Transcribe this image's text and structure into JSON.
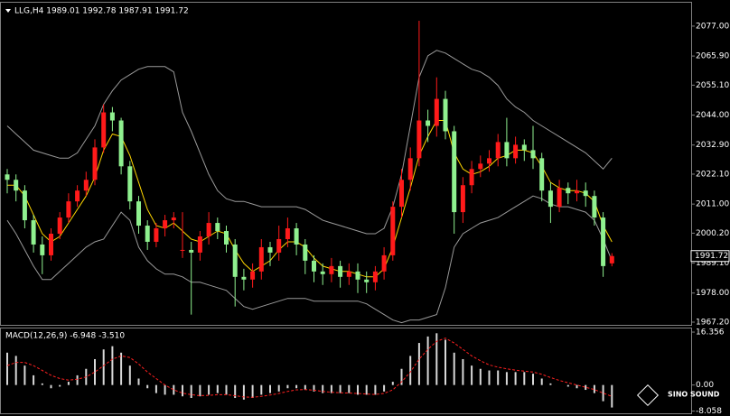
{
  "chart_data": [
    {
      "type": "candlestick",
      "title": "LLG,H4  1989.01 1992.78 1987.91 1991.72",
      "up_color": "#ff1a1a",
      "down_color": "#8ff08f",
      "open": [
        2022,
        2020,
        2016,
        2005,
        1996,
        1992,
        2000,
        2006,
        2012,
        2016,
        2020,
        2032,
        2045,
        2042,
        2025,
        2012,
        2003,
        1997,
        2002,
        2005,
        1994,
        1994,
        1993,
        1999,
        2004,
        2001,
        1996,
        1984,
        1983,
        1986,
        1995,
        1993,
        1998,
        2002,
        1996,
        1990,
        1986,
        1985,
        1988,
        1984,
        1986,
        1983,
        1982,
        1986,
        1992,
        2010,
        2020,
        2028,
        2042,
        2040,
        2050,
        2038,
        2008,
        2018,
        2024,
        2026,
        2028,
        2034,
        2028,
        2033,
        2031,
        2028,
        2016,
        2010,
        2017,
        2015,
        2016,
        2014,
        2006,
        1989.01
      ],
      "high": [
        2024,
        2022,
        2018,
        2007,
        1999,
        2002,
        2008,
        2015,
        2018,
        2023,
        2035,
        2048,
        2047,
        2043,
        2027,
        2014,
        2005,
        2004,
        2007,
        2008,
        2008,
        1997,
        2001,
        2008,
        2006,
        2003,
        1998,
        1987,
        1989,
        1998,
        1997,
        2003,
        2006,
        2004,
        1998,
        1992,
        1989,
        1991,
        1990,
        1989,
        1989,
        1986,
        1988,
        1995,
        2012,
        2024,
        2032,
        2079,
        2046,
        2058,
        2053,
        2040,
        2021,
        2027,
        2029,
        2031,
        2037,
        2043,
        2036,
        2035,
        2040,
        2030,
        2019,
        2020,
        2019,
        2020,
        2019,
        2016,
        2008,
        1992.78
      ],
      "low": [
        2015,
        2012,
        2002,
        1993,
        1985,
        1990,
        1998,
        2004,
        2010,
        2014,
        2018,
        2030,
        2038,
        2022,
        2009,
        2000,
        1994,
        1995,
        1999,
        2002,
        1991,
        1970,
        1990,
        1996,
        1998,
        1993,
        1973,
        1979,
        1980,
        1983,
        1988,
        1990,
        1995,
        1992,
        1985,
        1982,
        1981,
        1982,
        1980,
        1981,
        1978,
        1978,
        1979,
        1983,
        1990,
        2006,
        2016,
        2025,
        2034,
        2036,
        2035,
        2000,
        2004,
        2015,
        2021,
        2023,
        2025,
        2025,
        2026,
        2027,
        2024,
        2012,
        2004,
        2008,
        2011,
        2012,
        2010,
        2003,
        1984,
        1987.91
      ],
      "close": [
        2020,
        2016,
        2005,
        1996,
        1992,
        2000,
        2006,
        2012,
        2016,
        2020,
        2032,
        2045,
        2042,
        2025,
        2012,
        2003,
        1997,
        2002,
        2005,
        2006,
        1994,
        1993,
        1999,
        2004,
        2001,
        1996,
        1984,
        1983,
        1986,
        1995,
        1993,
        1998,
        2002,
        1996,
        1990,
        1986,
        1985,
        1988,
        1984,
        1986,
        1983,
        1982,
        1986,
        1992,
        2010,
        2020,
        2028,
        2042,
        2040,
        2050,
        2038,
        2008,
        2018,
        2024,
        2026,
        2028,
        2034,
        2028,
        2033,
        2031,
        2028,
        2016,
        2010,
        2017,
        2015,
        2016,
        2014,
        2006,
        1988,
        1991.72
      ],
      "series": [
        {
          "color": "#ffd700",
          "values": [
            2018,
            2018,
            2014,
            2007,
            2000,
            1997,
            1999,
            2004,
            2009,
            2014,
            2021,
            2031,
            2037,
            2036,
            2029,
            2019,
            2009,
            2003,
            2002,
            2004,
            2001,
            1998,
            1997,
            1999,
            2001,
            2000,
            1994,
            1989,
            1986,
            1988,
            1990,
            1994,
            1997,
            1997,
            1995,
            1991,
            1988,
            1987,
            1986,
            1986,
            1985,
            1984,
            1984,
            1987,
            1995,
            2006,
            2017,
            2029,
            2036,
            2042,
            2042,
            2030,
            2024,
            2022,
            2023,
            2025,
            2028,
            2029,
            2031,
            2031,
            2030,
            2025,
            2019,
            2017,
            2016,
            2016,
            2015,
            2012,
            2003,
            1997
          ]
        },
        {
          "color": "#9a9a9a",
          "values": [
            2040,
            2037,
            2034,
            2031,
            2030,
            2029,
            2028,
            2028,
            2030,
            2035,
            2040,
            2048,
            2053,
            2057,
            2059,
            2061,
            2062,
            2062,
            2062,
            2060,
            2045,
            2038,
            2030,
            2022,
            2016,
            2013,
            2012,
            2012,
            2011,
            2010,
            2010,
            2010,
            2010,
            2010,
            2009,
            2007,
            2005,
            2004,
            2003,
            2002,
            2001,
            2000,
            2000,
            2002,
            2010,
            2022,
            2040,
            2058,
            2066,
            2068,
            2067,
            2065,
            2063,
            2061,
            2060,
            2058,
            2055,
            2050,
            2047,
            2045,
            2042,
            2040,
            2038,
            2036,
            2034,
            2032,
            2030,
            2027,
            2024,
            2028
          ]
        },
        {
          "color": "#9a9a9a",
          "values": [
            2005,
            2000,
            1994,
            1988,
            1983,
            1983,
            1986,
            1989,
            1992,
            1995,
            1997,
            1998,
            2003,
            2008,
            2005,
            1995,
            1990,
            1987,
            1985,
            1985,
            1984,
            1982,
            1982,
            1981,
            1980,
            1979,
            1976,
            1973,
            1972,
            1973,
            1974,
            1975,
            1976,
            1976,
            1976,
            1975,
            1975,
            1975,
            1975,
            1975,
            1975,
            1974,
            1972,
            1970,
            1968,
            1967,
            1968,
            1968,
            1969,
            1970,
            1980,
            1995,
            2000,
            2002,
            2004,
            2005,
            2006,
            2008,
            2010,
            2012,
            2014,
            2013,
            2011,
            2010,
            2010,
            2009,
            2008,
            2005,
            1998,
            1990
          ]
        }
      ],
      "ylim": [
        1966.2,
        2085.68
      ],
      "yticks": [
        {
          "value": 2077,
          "label": "2077.00"
        },
        {
          "value": 2065.9,
          "label": "2065.90"
        },
        {
          "value": 2055.1,
          "label": "2055.10"
        },
        {
          "value": 2044,
          "label": "2044.00"
        },
        {
          "value": 2032.9,
          "label": "2032.90"
        },
        {
          "value": 2022.1,
          "label": "2022.10"
        },
        {
          "value": 2011,
          "label": "2011.00"
        },
        {
          "value": 2000.2,
          "label": "2000.20"
        },
        {
          "value": 1989.1,
          "label": "1989.10"
        },
        {
          "value": 1978,
          "label": "1978.00"
        },
        {
          "value": 1967.2,
          "label": "1967.20"
        }
      ]
    },
    {
      "type": "macd",
      "title": "MACD(12,26,9) -6.948 -3.510",
      "series": [
        {
          "color": "#d8d8d8",
          "values": [
            10,
            9,
            6,
            3,
            0.5,
            -1,
            -0.5,
            1,
            3,
            5,
            8,
            11,
            12,
            10,
            6,
            2,
            -1,
            -2.5,
            -3,
            -3,
            -3.5,
            -4,
            -3.5,
            -3,
            -2.5,
            -3,
            -4,
            -4.5,
            -4,
            -3,
            -2.5,
            -2,
            -1,
            -1,
            -1.5,
            -2,
            -2.5,
            -2.5,
            -2.5,
            -2.5,
            -3,
            -3,
            -3,
            -2,
            1,
            5,
            9,
            13,
            15,
            16,
            14,
            10,
            8,
            6,
            5,
            4.5,
            4.5,
            4,
            4,
            4,
            3.5,
            2,
            0.5,
            0,
            -0.5,
            -1,
            -1.5,
            -2.5,
            -5,
            -6.948
          ]
        },
        {
          "color": "#ff2020",
          "values": [
            6,
            7,
            7,
            6,
            4.5,
            3,
            2,
            1.5,
            1.8,
            2.5,
            4,
            6,
            8,
            9,
            8.5,
            6.5,
            4,
            2,
            0,
            -1.5,
            -2.5,
            -3,
            -3.3,
            -3.2,
            -3,
            -3,
            -3.3,
            -3.7,
            -3.8,
            -3.5,
            -3.1,
            -2.6,
            -2,
            -1.5,
            -1.4,
            -1.6,
            -2,
            -2.2,
            -2.4,
            -2.5,
            -2.6,
            -2.8,
            -2.9,
            -2.6,
            -1.5,
            1,
            4,
            8,
            11,
            13.5,
            14.5,
            13,
            11,
            9,
            7.5,
            6.2,
            5.5,
            5,
            4.6,
            4.3,
            4,
            3.3,
            2.3,
            1.4,
            0.7,
            0,
            -0.7,
            -1.4,
            -2.5,
            -3.51
          ]
        }
      ],
      "ylim": [
        -8.74,
        17.48
      ],
      "yticks": [
        16.356,
        {
          "value": 0,
          "label": "0.00"
        },
        -8.058
      ]
    }
  ],
  "logo": {
    "text": "SINO SOUND"
  }
}
